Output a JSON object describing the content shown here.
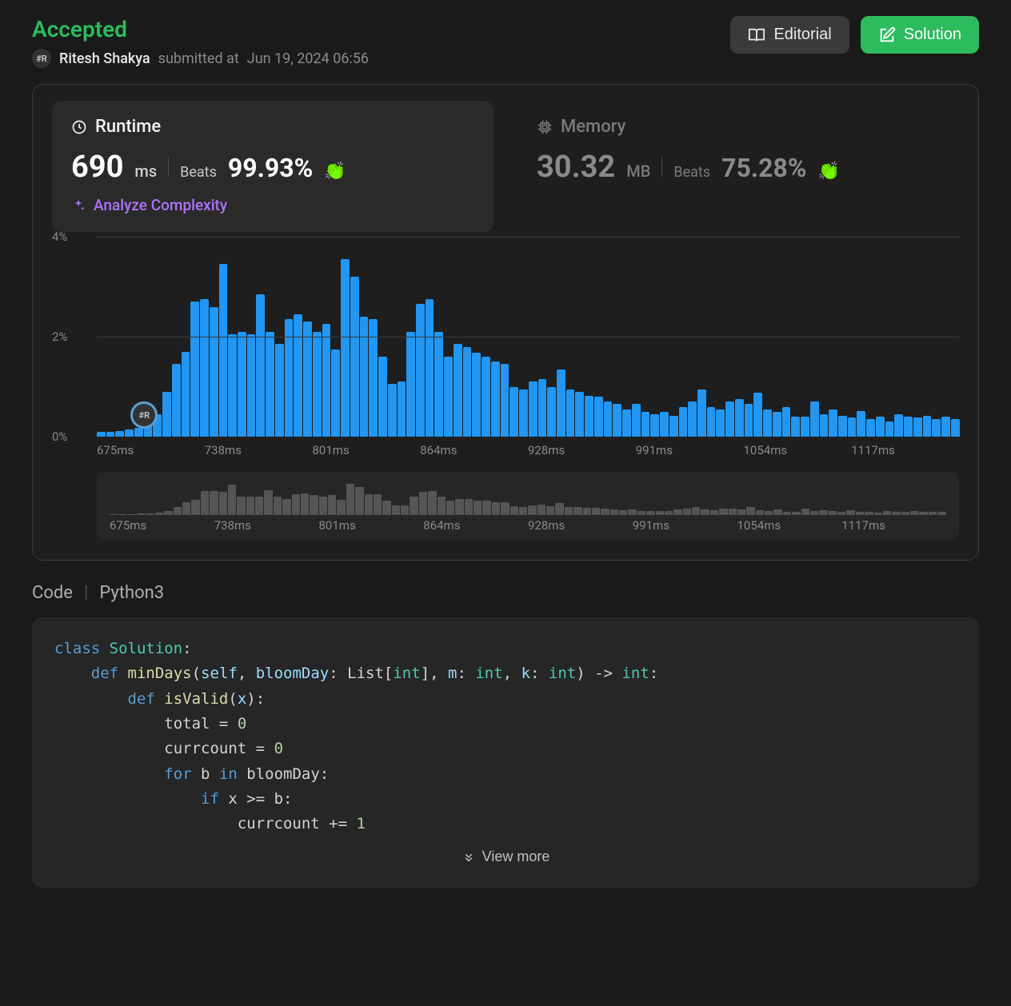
{
  "header": {
    "status": "Accepted",
    "status_color": "#2cbb5d",
    "author": "Ritesh Shakya",
    "avatar_text": "#R",
    "submitted_prefix": "submitted at",
    "submitted_at": "Jun 19, 2024 06:56",
    "editorial_label": "Editorial",
    "solution_label": "Solution"
  },
  "stats": {
    "runtime": {
      "title": "Runtime",
      "value": "690",
      "unit": "ms",
      "beats_label": "Beats",
      "beats_pct": "99.93%",
      "analyze_label": "Analyze Complexity"
    },
    "memory": {
      "title": "Memory",
      "value": "30.32",
      "unit": "MB",
      "beats_label": "Beats",
      "beats_pct": "75.28%"
    }
  },
  "chart": {
    "type": "histogram",
    "y_ticks": [
      "4%",
      "2%",
      "0%"
    ],
    "y_max_pct": 4,
    "x_ticks": [
      "675ms",
      "738ms",
      "801ms",
      "864ms",
      "928ms",
      "991ms",
      "1054ms",
      "1117ms"
    ],
    "bar_color": "#2196f3",
    "mini_bar_color": "#555555",
    "grid_color": "#3a3a3a",
    "background": "#1e1e1e",
    "marker_position_pct": 5.5,
    "marker_text": "#R",
    "values_pct": [
      0.1,
      0.1,
      0.12,
      0.15,
      0.18,
      0.28,
      0.45,
      0.9,
      1.45,
      1.7,
      2.7,
      2.75,
      2.6,
      3.45,
      2.05,
      2.1,
      2.05,
      2.85,
      2.1,
      1.85,
      2.35,
      2.45,
      2.3,
      2.1,
      2.25,
      1.75,
      3.55,
      3.2,
      2.4,
      2.35,
      1.6,
      1.05,
      1.1,
      2.1,
      2.65,
      2.75,
      2.1,
      1.6,
      1.85,
      1.8,
      1.68,
      1.6,
      1.5,
      1.45,
      1.0,
      0.95,
      1.1,
      1.15,
      1.0,
      1.35,
      0.95,
      0.9,
      0.82,
      0.8,
      0.7,
      0.65,
      0.55,
      0.65,
      0.5,
      0.45,
      0.5,
      0.42,
      0.6,
      0.7,
      0.95,
      0.6,
      0.55,
      0.7,
      0.75,
      0.65,
      0.88,
      0.55,
      0.5,
      0.6,
      0.4,
      0.4,
      0.7,
      0.45,
      0.55,
      0.42,
      0.38,
      0.52,
      0.35,
      0.4,
      0.3,
      0.45,
      0.4,
      0.38,
      0.42,
      0.35,
      0.4,
      0.35
    ]
  },
  "code": {
    "section_label": "Code",
    "language": "Python3",
    "view_more_label": "View more",
    "tokens": [
      [
        [
          "kw",
          "class"
        ],
        [
          "txt",
          " "
        ],
        [
          "cls",
          "Solution"
        ],
        [
          "punc",
          ":"
        ]
      ],
      [
        [
          "txt",
          "    "
        ],
        [
          "kw",
          "def"
        ],
        [
          "txt",
          " "
        ],
        [
          "fn",
          "minDays"
        ],
        [
          "punc",
          "("
        ],
        [
          "param",
          "self"
        ],
        [
          "punc",
          ", "
        ],
        [
          "param",
          "bloomDay"
        ],
        [
          "punc",
          ": "
        ],
        [
          "txt",
          "List"
        ],
        [
          "punc",
          "["
        ],
        [
          "type",
          "int"
        ],
        [
          "punc",
          "], "
        ],
        [
          "param",
          "m"
        ],
        [
          "punc",
          ": "
        ],
        [
          "type",
          "int"
        ],
        [
          "punc",
          ", "
        ],
        [
          "param",
          "k"
        ],
        [
          "punc",
          ": "
        ],
        [
          "type",
          "int"
        ],
        [
          "punc",
          ") -> "
        ],
        [
          "type",
          "int"
        ],
        [
          "punc",
          ":"
        ]
      ],
      [
        [
          "txt",
          "        "
        ],
        [
          "kw",
          "def"
        ],
        [
          "txt",
          " "
        ],
        [
          "fn",
          "isValid"
        ],
        [
          "punc",
          "("
        ],
        [
          "param",
          "x"
        ],
        [
          "punc",
          "):"
        ]
      ],
      [
        [
          "txt",
          "            "
        ],
        [
          "txt",
          "total "
        ],
        [
          "op",
          "="
        ],
        [
          "txt",
          " "
        ],
        [
          "num",
          "0"
        ]
      ],
      [
        [
          "txt",
          "            "
        ],
        [
          "txt",
          "currcount "
        ],
        [
          "op",
          "="
        ],
        [
          "txt",
          " "
        ],
        [
          "num",
          "0"
        ]
      ],
      [
        [
          "txt",
          "            "
        ],
        [
          "kw",
          "for"
        ],
        [
          "txt",
          " b "
        ],
        [
          "kw",
          "in"
        ],
        [
          "txt",
          " bloomDay"
        ],
        [
          "punc",
          ":"
        ]
      ],
      [
        [
          "txt",
          "                "
        ],
        [
          "kw",
          "if"
        ],
        [
          "txt",
          " x "
        ],
        [
          "op",
          ">="
        ],
        [
          "txt",
          " b"
        ],
        [
          "punc",
          ":"
        ]
      ],
      [
        [
          "txt",
          "                    "
        ],
        [
          "txt",
          "currcount "
        ],
        [
          "op",
          "+="
        ],
        [
          "txt",
          " "
        ],
        [
          "num",
          "1"
        ]
      ]
    ]
  }
}
